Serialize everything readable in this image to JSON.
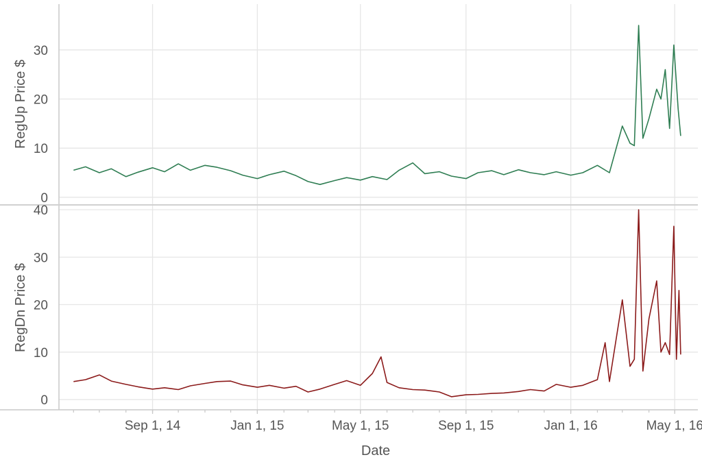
{
  "chart_data": {
    "type": "line",
    "xlabel": "Date",
    "x_ticks": [
      {
        "date": "2014-09-01",
        "label": "Sep 1, 14"
      },
      {
        "date": "2015-01-01",
        "label": "Jan 1, 15"
      },
      {
        "date": "2015-05-01",
        "label": "May 1, 15"
      },
      {
        "date": "2015-09-01",
        "label": "Sep 1, 15"
      },
      {
        "date": "2016-01-01",
        "label": "Jan 1, 16"
      },
      {
        "date": "2016-05-01",
        "label": "May 1, 16"
      }
    ],
    "xlim": [
      "2014-05-15",
      "2016-05-28"
    ],
    "grid": true,
    "panels": [
      {
        "ylabel": "RegUp Price $",
        "ylim": [
          -1,
          35
        ],
        "y_ticks": [
          0,
          10,
          20,
          30
        ],
        "color": "#2e7d52",
        "points": [
          [
            "2014-06-01",
            5.5
          ],
          [
            "2014-06-15",
            6.2
          ],
          [
            "2014-07-01",
            5.0
          ],
          [
            "2014-07-15",
            5.8
          ],
          [
            "2014-08-01",
            4.2
          ],
          [
            "2014-08-15",
            5.1
          ],
          [
            "2014-09-01",
            6.0
          ],
          [
            "2014-09-15",
            5.2
          ],
          [
            "2014-10-01",
            6.8
          ],
          [
            "2014-10-15",
            5.5
          ],
          [
            "2014-11-01",
            6.5
          ],
          [
            "2014-11-15",
            6.1
          ],
          [
            "2014-12-01",
            5.4
          ],
          [
            "2014-12-15",
            4.5
          ],
          [
            "2015-01-01",
            3.8
          ],
          [
            "2015-01-15",
            4.6
          ],
          [
            "2015-02-01",
            5.3
          ],
          [
            "2015-02-15",
            4.4
          ],
          [
            "2015-03-01",
            3.2
          ],
          [
            "2015-03-15",
            2.6
          ],
          [
            "2015-04-01",
            3.4
          ],
          [
            "2015-04-15",
            4.0
          ],
          [
            "2015-05-01",
            3.5
          ],
          [
            "2015-05-15",
            4.2
          ],
          [
            "2015-06-01",
            3.6
          ],
          [
            "2015-06-15",
            5.5
          ],
          [
            "2015-07-01",
            7.0
          ],
          [
            "2015-07-15",
            4.8
          ],
          [
            "2015-08-01",
            5.2
          ],
          [
            "2015-08-15",
            4.3
          ],
          [
            "2015-09-01",
            3.8
          ],
          [
            "2015-09-15",
            5.0
          ],
          [
            "2015-10-01",
            5.4
          ],
          [
            "2015-10-15",
            4.6
          ],
          [
            "2015-11-01",
            5.6
          ],
          [
            "2015-11-15",
            5.0
          ],
          [
            "2015-12-01",
            4.6
          ],
          [
            "2015-12-15",
            5.2
          ],
          [
            "2016-01-01",
            4.5
          ],
          [
            "2016-01-15",
            5.0
          ],
          [
            "2016-02-01",
            6.5
          ],
          [
            "2016-02-15",
            5.0
          ],
          [
            "2016-03-01",
            14.5
          ],
          [
            "2016-03-10",
            11.0
          ],
          [
            "2016-03-15",
            10.5
          ],
          [
            "2016-03-20",
            35.0
          ],
          [
            "2016-03-25",
            12.0
          ],
          [
            "2016-04-01",
            16.0
          ],
          [
            "2016-04-10",
            22.0
          ],
          [
            "2016-04-15",
            20.0
          ],
          [
            "2016-04-20",
            26.0
          ],
          [
            "2016-04-25",
            14.0
          ],
          [
            "2016-04-30",
            31.0
          ],
          [
            "2016-05-05",
            18.0
          ],
          [
            "2016-05-08",
            12.5
          ]
        ]
      },
      {
        "ylabel": "RegDn Price $",
        "ylim": [
          -1,
          40
        ],
        "y_ticks": [
          0,
          10,
          20,
          30,
          40
        ],
        "color": "#8b1a1a",
        "points": [
          [
            "2014-06-01",
            3.8
          ],
          [
            "2014-06-15",
            4.2
          ],
          [
            "2014-07-01",
            5.2
          ],
          [
            "2014-07-15",
            3.9
          ],
          [
            "2014-08-01",
            3.2
          ],
          [
            "2014-08-15",
            2.7
          ],
          [
            "2014-09-01",
            2.2
          ],
          [
            "2014-09-15",
            2.5
          ],
          [
            "2014-10-01",
            2.1
          ],
          [
            "2014-10-15",
            2.9
          ],
          [
            "2014-11-01",
            3.4
          ],
          [
            "2014-11-15",
            3.8
          ],
          [
            "2014-12-01",
            3.9
          ],
          [
            "2014-12-15",
            3.1
          ],
          [
            "2015-01-01",
            2.6
          ],
          [
            "2015-01-15",
            3.0
          ],
          [
            "2015-02-01",
            2.4
          ],
          [
            "2015-02-15",
            2.8
          ],
          [
            "2015-03-01",
            1.6
          ],
          [
            "2015-03-15",
            2.2
          ],
          [
            "2015-04-01",
            3.2
          ],
          [
            "2015-04-15",
            4.0
          ],
          [
            "2015-05-01",
            3.0
          ],
          [
            "2015-05-15",
            5.5
          ],
          [
            "2015-05-25",
            9.0
          ],
          [
            "2015-06-01",
            3.6
          ],
          [
            "2015-06-15",
            2.5
          ],
          [
            "2015-07-01",
            2.1
          ],
          [
            "2015-07-15",
            2.0
          ],
          [
            "2015-08-01",
            1.6
          ],
          [
            "2015-08-15",
            0.6
          ],
          [
            "2015-09-01",
            1.0
          ],
          [
            "2015-09-15",
            1.1
          ],
          [
            "2015-10-01",
            1.3
          ],
          [
            "2015-10-15",
            1.4
          ],
          [
            "2015-11-01",
            1.7
          ],
          [
            "2015-11-15",
            2.1
          ],
          [
            "2015-12-01",
            1.8
          ],
          [
            "2015-12-15",
            3.2
          ],
          [
            "2016-01-01",
            2.6
          ],
          [
            "2016-01-15",
            3.0
          ],
          [
            "2016-02-01",
            4.2
          ],
          [
            "2016-02-10",
            12.0
          ],
          [
            "2016-02-15",
            3.8
          ],
          [
            "2016-03-01",
            21.0
          ],
          [
            "2016-03-10",
            7.0
          ],
          [
            "2016-03-15",
            8.5
          ],
          [
            "2016-03-20",
            40.0
          ],
          [
            "2016-03-25",
            6.0
          ],
          [
            "2016-04-01",
            17.0
          ],
          [
            "2016-04-10",
            25.0
          ],
          [
            "2016-04-15",
            10.0
          ],
          [
            "2016-04-20",
            12.0
          ],
          [
            "2016-04-25",
            9.5
          ],
          [
            "2016-04-30",
            36.5
          ],
          [
            "2016-05-03",
            8.5
          ],
          [
            "2016-05-06",
            23.0
          ],
          [
            "2016-05-08",
            9.5
          ]
        ]
      }
    ]
  }
}
